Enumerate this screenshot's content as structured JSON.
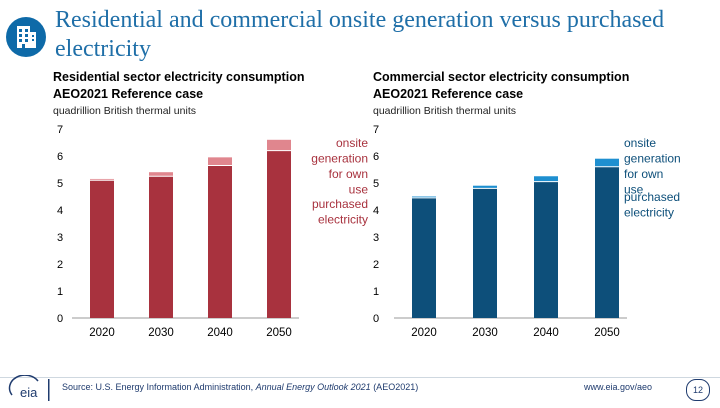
{
  "header": {
    "title": "Residential and commercial onsite generation versus purchased electricity",
    "icon": "building-icon"
  },
  "colors": {
    "residential_purchased": "#a8323e",
    "residential_onsite": "#e0868e",
    "commercial_purchased": "#0d4f7a",
    "commercial_onsite": "#1e8fd0",
    "title": "#1f6fa8",
    "footer": "#1f3b6e"
  },
  "chart_data": [
    {
      "type": "bar",
      "stacked": true,
      "title": "Residential sector electricity consumption",
      "subtitle": "AEO2021 Reference case",
      "ylabel": "quadrillion British thermal units",
      "ylim": [
        0,
        7
      ],
      "yticks": [
        "0",
        "1",
        "2",
        "3",
        "4",
        "5",
        "6",
        "7"
      ],
      "categories": [
        "2020",
        "2030",
        "2040",
        "2050"
      ],
      "series": [
        {
          "name": "purchased electricity",
          "values": [
            5.1,
            5.25,
            5.65,
            6.2
          ]
        },
        {
          "name": "onsite generation for own use",
          "values": [
            0.05,
            0.15,
            0.3,
            0.4
          ]
        }
      ],
      "annotations": {
        "onsite": "onsite generation for own use",
        "purchased": "purchased electricity"
      }
    },
    {
      "type": "bar",
      "stacked": true,
      "title": "Commercial sector electricity consumption",
      "subtitle": "AEO2021 Reference case",
      "ylabel": "quadrillion British thermal units",
      "ylim": [
        0,
        7
      ],
      "yticks": [
        "0",
        "1",
        "2",
        "3",
        "4",
        "5",
        "6",
        "7"
      ],
      "categories": [
        "2020",
        "2030",
        "2040",
        "2050"
      ],
      "series": [
        {
          "name": "purchased electricity",
          "values": [
            4.45,
            4.8,
            5.05,
            5.6
          ]
        },
        {
          "name": "onsite generation for own use",
          "values": [
            0.05,
            0.1,
            0.2,
            0.3
          ]
        }
      ],
      "annotations": {
        "onsite": "onsite generation for own use",
        "purchased": "purchased electricity"
      }
    }
  ],
  "footer": {
    "logo_text": "eia",
    "source_prefix": "Source: U.S. Energy Information Administration, ",
    "source_italic": "Annual Energy Outlook 2021",
    "source_suffix": " (AEO2021)",
    "url": "www.eia.gov/aeo",
    "page": "12"
  }
}
